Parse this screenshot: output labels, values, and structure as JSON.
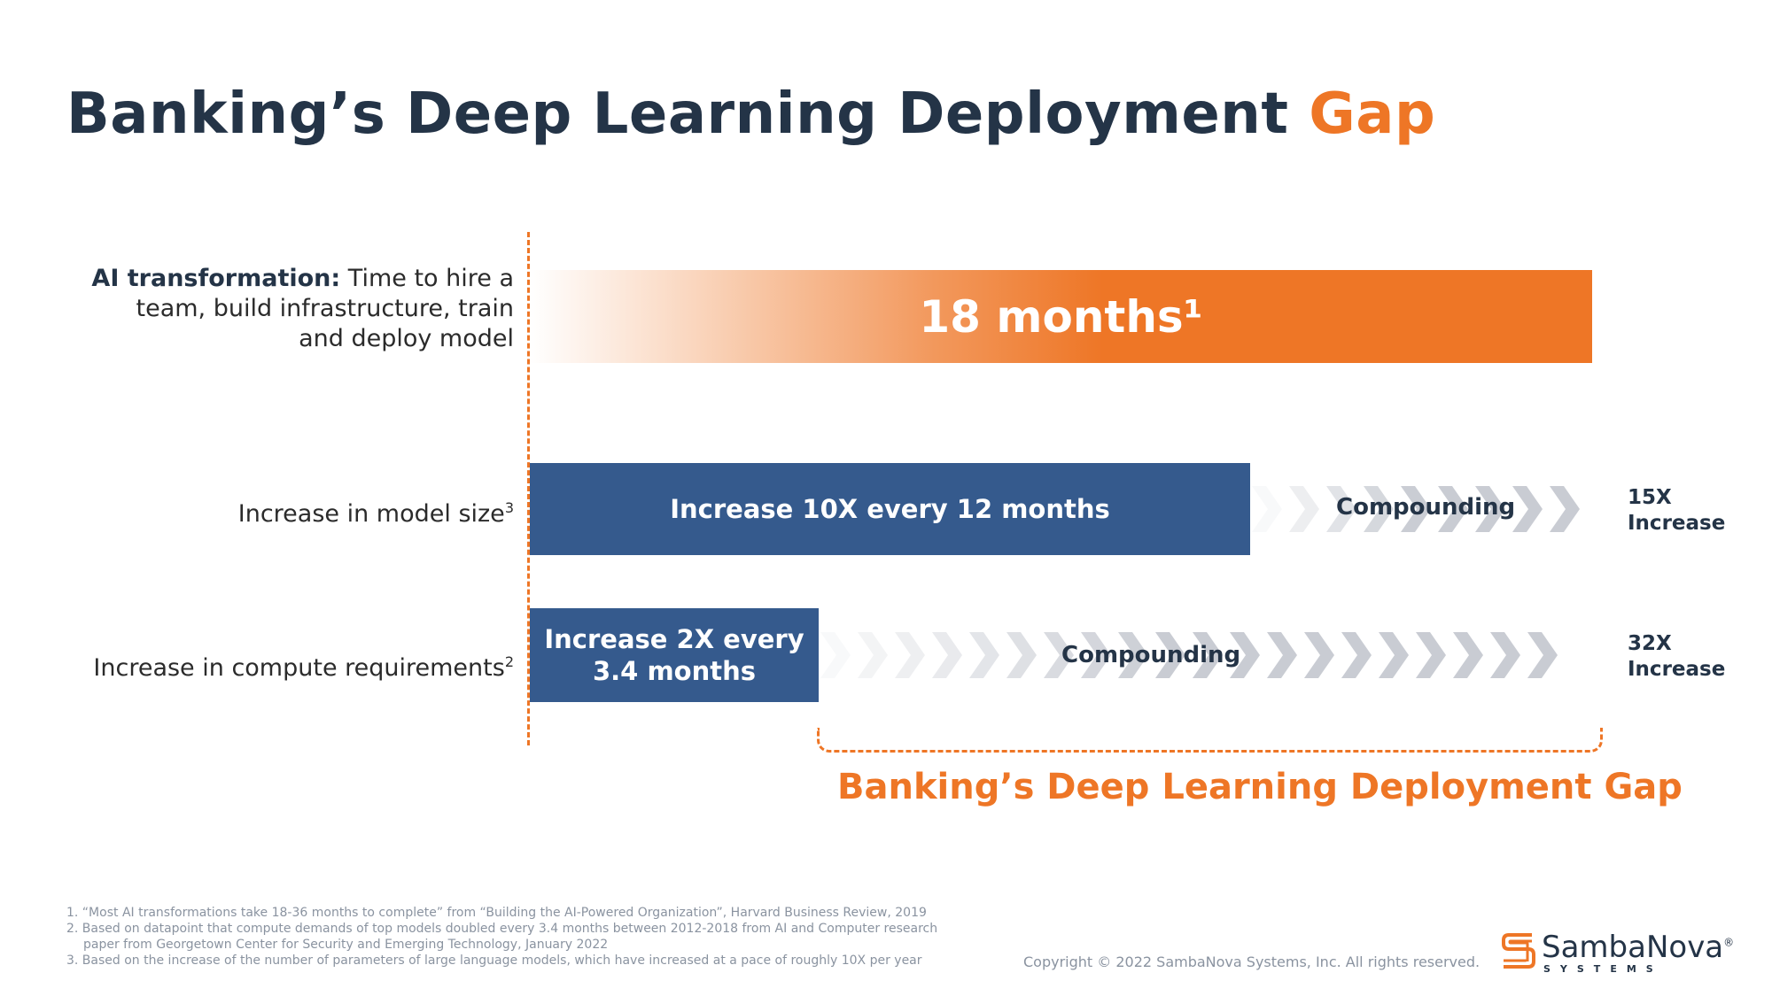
{
  "title": {
    "main": "Banking’s Deep Learning Deployment",
    "accent": "Gap"
  },
  "rows": {
    "ai": {
      "label_bold": "AI transformation:",
      "label_rest_1": " Time to hire a",
      "label_line_2": "team, build infrastructure, train",
      "label_line_3": "and deploy model"
    },
    "model": {
      "label": "Increase in model size",
      "label_sup": "3"
    },
    "compute": {
      "label": "Increase in compute requirements",
      "label_sup": "2"
    }
  },
  "chart_data": {
    "type": "bar",
    "categories": [
      "AI transformation",
      "Increase in model size",
      "Increase in compute requirements"
    ],
    "bars": [
      {
        "label": "18 months¹",
        "months": 18
      },
      {
        "label": "Increase 10X every 12 months",
        "months": 12,
        "compounding_label": "Compounding",
        "result_line1": "15X",
        "result_line2": "Increase"
      },
      {
        "label_line1": "Increase 2X every",
        "label_line2": "3.4 months",
        "months": 3.4,
        "compounding_label": "Compounding",
        "result_line1": "32X",
        "result_line2": "Increase"
      }
    ],
    "xlim": [
      0,
      18
    ],
    "gap_label": "Banking’s Deep Learning Deployment Gap"
  },
  "footnotes": [
    "1.  “Most AI transformations take 18-36 months to complete” from “Building the AI-Powered Organization”, Harvard Business Review, 2019",
    "2.  Based on datapoint that compute demands of top models doubled every 3.4 months between 2012-2018  from AI and Computer research",
    "paper from Georgetown Center for Security and Emerging Technology, January 2022",
    "3.  Based on the increase of the number of parameters of large language models, which have increased at a pace of roughly 10X per year"
  ],
  "copyright": "Copyright © 2022 SambaNova Systems, Inc. All rights reserved.",
  "logo": {
    "name": "SambaNova",
    "reg": "®",
    "sub": "SYSTEMS",
    "icon": "sambanova-logo-icon"
  },
  "colors": {
    "orange": "#ee7626",
    "blue": "#355a8d",
    "navy": "#243447",
    "chevron": "#c9ccd3"
  }
}
